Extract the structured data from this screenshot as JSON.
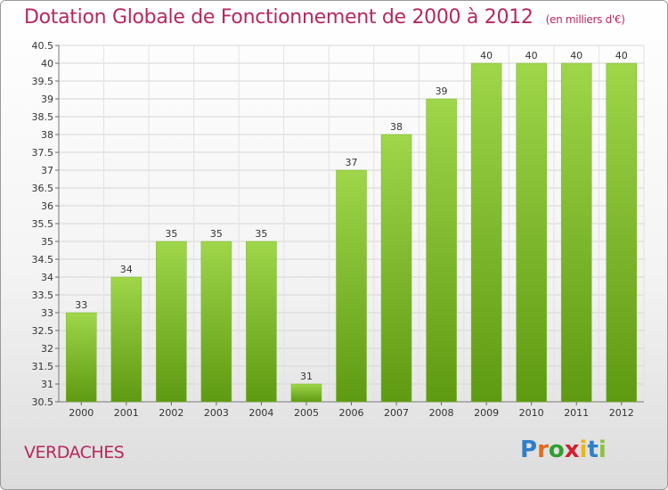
{
  "header": {
    "title": "Dotation Globale de Fonctionnement de 2000 à 2012",
    "subtitle": "(en milliers d'€)"
  },
  "footer": {
    "commune": "VERDACHES",
    "logo_letters": [
      "P",
      "r",
      "o",
      "x",
      "i",
      "t",
      "i"
    ]
  },
  "colors": {
    "title": "#b5285f",
    "bar_top": "#9fd64a",
    "bar_bottom": "#5e9a12",
    "logo": [
      "#2f7fc8",
      "#e06a1b",
      "#2f9e2f",
      "#d21f2f",
      "#e8b51c",
      "#2f7fc8",
      "#8bc23e"
    ]
  },
  "chart_data": {
    "type": "bar",
    "categories": [
      "2000",
      "2001",
      "2002",
      "2003",
      "2004",
      "2005",
      "2006",
      "2007",
      "2008",
      "2009",
      "2010",
      "2011",
      "2012"
    ],
    "values": [
      33,
      34,
      35,
      35,
      35,
      31,
      37,
      38,
      39,
      40,
      40,
      40,
      40
    ],
    "ylim": [
      30.5,
      40.5
    ],
    "yticks": [
      "30.5",
      "31",
      "31.5",
      "32",
      "32.5",
      "33",
      "33.5",
      "34",
      "34.5",
      "35",
      "35.5",
      "36",
      "36.5",
      "37",
      "37.5",
      "38",
      "38.5",
      "39",
      "39.5",
      "40",
      "40.5"
    ],
    "grid": true,
    "title": "Dotation Globale de Fonctionnement de 2000 à 2012",
    "xlabel": "",
    "ylabel": ""
  }
}
